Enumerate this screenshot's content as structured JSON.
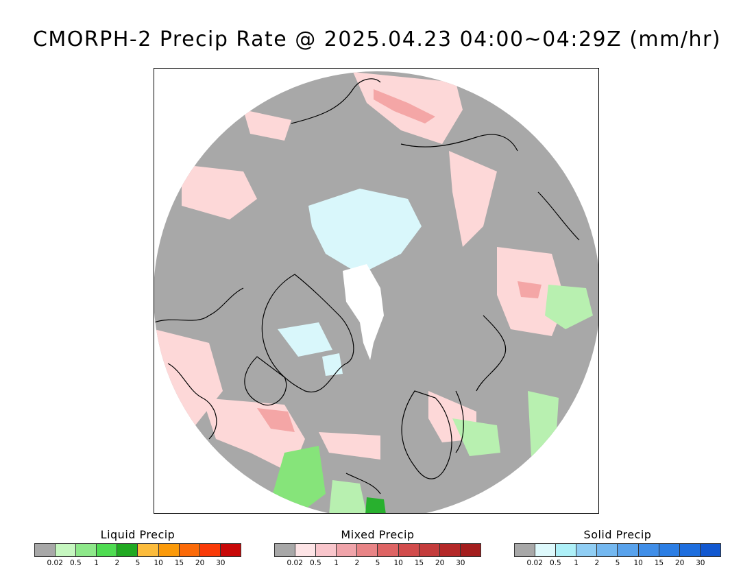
{
  "title": "CMORPH-2 Precip Rate @ 2025.04.23 04:00~04:29Z (mm/hr)",
  "map": {
    "projection": "polar stereographic (north pole)",
    "background_color": "#a8a8a8",
    "region_colors": {
      "mixed_light": "#fdd8d8",
      "mixed_mid": "#f4a6a6",
      "mixed_dark": "#e98080",
      "solid_light": "#d9f7fb",
      "liquid_light": "#b8f0b0",
      "liquid_mid": "#86e47a",
      "liquid_dark": "#28b02e",
      "no_data": "#ffffff",
      "coastline": "#000000"
    }
  },
  "legends": [
    {
      "title": "Liquid Precip",
      "ticks": [
        "0.02",
        "0.5",
        "1",
        "2",
        "5",
        "10",
        "15",
        "20",
        "30"
      ],
      "colors": [
        "#a8a8a8",
        "#c6f7c0",
        "#8ee88a",
        "#4fdc52",
        "#21a922",
        "#fcbc3c",
        "#fb9a0a",
        "#fb6a08",
        "#f93a08",
        "#c80808"
      ]
    },
    {
      "title": "Mixed Precip",
      "ticks": [
        "0.02",
        "0.5",
        "1",
        "2",
        "5",
        "10",
        "15",
        "20",
        "30"
      ],
      "colors": [
        "#a8a8a8",
        "#fde4e6",
        "#f9c6cc",
        "#f0a4aa",
        "#e88486",
        "#de6464",
        "#d24c4c",
        "#c43c3c",
        "#b42828",
        "#a41e1e"
      ]
    },
    {
      "title": "Solid Precip",
      "ticks": [
        "0.02",
        "0.5",
        "1",
        "2",
        "5",
        "10",
        "15",
        "20",
        "30"
      ],
      "colors": [
        "#a8a8a8",
        "#def9fc",
        "#aef0f8",
        "#90cef4",
        "#74b8f0",
        "#58a2ec",
        "#408ee8",
        "#2c7ee4",
        "#1e6ede",
        "#1258d0"
      ]
    }
  ]
}
